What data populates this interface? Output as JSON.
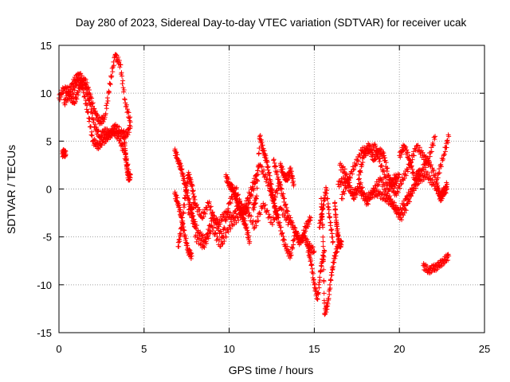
{
  "chart_data": {
    "type": "scatter",
    "title": "Day 280 of 2023, Sidereal Day-to-day VTEC variation (SDTVAR) for receiver ucak",
    "xlabel": "GPS time / hours",
    "ylabel": "SDTVAR / TECUs",
    "xlim": [
      0,
      25
    ],
    "ylim": [
      -15,
      15
    ],
    "xticks": [
      0,
      5,
      10,
      15,
      20,
      25
    ],
    "yticks": [
      -15,
      -10,
      -5,
      0,
      5,
      10,
      15
    ],
    "grid": true,
    "marker": "+",
    "color": "#ff0000",
    "series": [
      {
        "name": "SDTVAR",
        "segments": [
          {
            "x": [
              0.0,
              0.3,
              0.6,
              0.9,
              1.2,
              1.5,
              1.8,
              2.1,
              2.4,
              2.7,
              3.0,
              3.3,
              3.6,
              3.9,
              4.2
            ],
            "y": [
              9.5,
              10.5,
              10.2,
              11.3,
              12.0,
              11.0,
              9.0,
              6.5,
              5.5,
              6.0,
              5.8,
              6.5,
              6.0,
              5.5,
              6.5
            ]
          },
          {
            "x": [
              0.3,
              0.6,
              0.9,
              1.2,
              1.5,
              1.8,
              2.1,
              2.4,
              2.7,
              3.0,
              3.3,
              3.6,
              3.9,
              4.2
            ],
            "y": [
              9.0,
              9.8,
              9.0,
              10.5,
              11.5,
              10.0,
              8.0,
              7.0,
              7.5,
              11.0,
              14.0,
              13.0,
              9.0,
              7.0
            ]
          },
          {
            "x": [
              0.8,
              1.1,
              1.4,
              1.7,
              2.0,
              2.3,
              2.6,
              2.9,
              3.2,
              3.5,
              3.8,
              4.1
            ],
            "y": [
              10.0,
              11.5,
              10.5,
              8.0,
              5.0,
              4.5,
              5.0,
              5.5,
              6.0,
              5.5,
              4.0,
              2.0
            ]
          },
          {
            "x": [
              3.8,
              3.9,
              4.0,
              4.1,
              4.2
            ],
            "y": [
              6.0,
              4.0,
              2.0,
              1.0,
              1.5
            ]
          },
          {
            "x": [
              0.2,
              0.3,
              0.4
            ],
            "y": [
              3.7,
              3.8,
              3.6
            ]
          },
          {
            "x": [
              6.8,
              7.0,
              7.2,
              7.4,
              7.6,
              7.8
            ],
            "y": [
              -0.5,
              -1.5,
              -3.0,
              -5.0,
              -6.5,
              -7.0
            ]
          },
          {
            "x": [
              6.8,
              7.0,
              7.2,
              7.4,
              7.6,
              7.8,
              8.0
            ],
            "y": [
              4.0,
              3.0,
              2.0,
              0.5,
              -1.0,
              -2.5,
              -4.0
            ]
          },
          {
            "x": [
              7.0,
              7.2,
              7.4,
              7.6,
              7.8,
              8.0
            ],
            "y": [
              -6.0,
              -4.0,
              -1.0,
              1.5,
              0.5,
              -1.5
            ]
          },
          {
            "x": [
              7.8,
              8.2,
              8.6,
              9.0,
              9.4,
              9.8,
              10.2,
              10.6,
              11.0,
              11.4,
              11.8,
              12.2,
              12.6,
              13.0
            ],
            "y": [
              -3.0,
              -4.5,
              -5.5,
              -3.0,
              -3.5,
              -2.5,
              -3.0,
              -1.5,
              -2.5,
              0.0,
              2.5,
              1.0,
              -1.0,
              0.5
            ]
          },
          {
            "x": [
              7.6,
              8.0,
              8.4,
              8.8,
              9.2,
              9.6,
              10.0,
              10.4,
              10.8,
              11.2,
              11.6
            ],
            "y": [
              -2.5,
              -1.5,
              -3.0,
              -1.5,
              -3.5,
              -5.0,
              -1.5,
              0.0,
              -2.5,
              -0.5,
              1.5
            ]
          },
          {
            "x": [
              8.0,
              8.5,
              9.0,
              9.5,
              10.0,
              10.5,
              11.0,
              11.5,
              12.0,
              12.5,
              13.0,
              13.5
            ],
            "y": [
              -5.0,
              -6.0,
              -4.0,
              -6.0,
              -4.0,
              -3.0,
              -2.0,
              -4.0,
              -1.5,
              -3.5,
              -2.0,
              -3.5
            ]
          },
          {
            "x": [
              9.8,
              10.0,
              10.2,
              10.4,
              10.6,
              10.8,
              11.0,
              11.2
            ],
            "y": [
              1.3,
              0.5,
              0.0,
              -1.0,
              -2.0,
              -3.0,
              -4.0,
              -5.5
            ]
          },
          {
            "x": [
              11.4,
              11.6,
              11.8,
              12.0,
              12.2,
              12.4,
              12.6,
              12.8
            ],
            "y": [
              -2.0,
              -1.0,
              5.5,
              4.0,
              3.0,
              1.0,
              -1.0,
              -3.0
            ]
          },
          {
            "x": [
              12.6,
              12.9,
              13.2,
              13.5,
              13.8,
              14.1,
              14.4,
              14.7,
              15.0
            ],
            "y": [
              3.0,
              1.0,
              -1.0,
              -3.0,
              -4.0,
              -5.5,
              -5.0,
              -6.0,
              -6.5
            ]
          },
          {
            "x": [
              12.4,
              12.7,
              13.0,
              13.3,
              13.6,
              13.9,
              14.2,
              14.5,
              14.8
            ],
            "y": [
              0.0,
              -2.0,
              -4.0,
              -6.0,
              -7.0,
              -4.5,
              -5.5,
              -4.0,
              -3.0
            ]
          },
          {
            "x": [
              13.0,
              13.2,
              13.4,
              13.6,
              13.8
            ],
            "y": [
              2.5,
              1.5,
              1.0,
              2.0,
              0.5
            ]
          },
          {
            "x": [
              14.6,
              14.8,
              15.0,
              15.2,
              15.4,
              15.6
            ],
            "y": [
              -6.0,
              -7.5,
              -10.0,
              -11.5,
              -8.0,
              -6.5
            ]
          },
          {
            "x": [
              15.4,
              15.5,
              15.6,
              15.8,
              16.0,
              16.2,
              16.4
            ],
            "y": [
              -1.0,
              -4.0,
              -13.0,
              -12.0,
              -9.0,
              -7.0,
              -6.0
            ]
          },
          {
            "x": [
              15.3,
              15.5,
              15.7,
              15.9,
              16.1
            ],
            "y": [
              -4.0,
              -2.0,
              0.0,
              -3.0,
              -5.5
            ]
          },
          {
            "x": [
              16.2,
              16.3,
              16.4,
              16.5,
              16.6
            ],
            "y": [
              -1.5,
              -3.5,
              -5.0,
              -6.0,
              -5.5
            ]
          },
          {
            "x": [
              16.4,
              16.8,
              17.2,
              17.6,
              18.0,
              18.4,
              18.8,
              19.2,
              19.6,
              20.0,
              20.4,
              20.8,
              21.2,
              21.6,
              22.0,
              22.4,
              22.8
            ],
            "y": [
              0.5,
              1.0,
              -0.5,
              0.0,
              -1.0,
              -0.5,
              -0.5,
              -1.0,
              -1.5,
              -2.5,
              -1.0,
              0.0,
              1.0,
              1.5,
              0.5,
              -0.5,
              0.0
            ]
          },
          {
            "x": [
              16.5,
              16.9,
              17.3,
              17.7,
              18.1,
              18.5,
              18.9,
              19.3,
              19.7,
              20.1,
              20.5,
              20.9,
              21.3,
              21.7,
              22.1
            ],
            "y": [
              2.5,
              1.5,
              -1.0,
              0.5,
              -1.5,
              0.0,
              1.0,
              -0.5,
              -2.0,
              -3.0,
              -1.5,
              0.5,
              2.0,
              3.0,
              5.5
            ]
          },
          {
            "x": [
              16.6,
              17.0,
              17.4,
              17.8,
              18.2,
              18.6,
              19.0,
              19.4,
              19.8
            ],
            "y": [
              -1.0,
              1.0,
              2.5,
              4.0,
              4.0,
              4.5,
              2.0,
              0.0,
              1.5
            ]
          },
          {
            "x": [
              17.6,
              17.9,
              18.2,
              18.5,
              18.8,
              19.1,
              19.4,
              19.7,
              20.0
            ],
            "y": [
              1.0,
              3.5,
              4.5,
              3.0,
              4.0,
              3.5,
              1.0,
              0.5,
              1.5
            ]
          },
          {
            "x": [
              19.4,
              19.8,
              20.2,
              20.6,
              21.0,
              21.4,
              21.8,
              22.2,
              22.6,
              22.9
            ],
            "y": [
              0.5,
              -0.5,
              1.0,
              2.5,
              4.5,
              3.5,
              2.5,
              1.0,
              3.5,
              5.5
            ]
          },
          {
            "x": [
              20.0,
              20.3,
              20.6,
              20.9,
              21.2
            ],
            "y": [
              3.5,
              4.5,
              3.0,
              1.0,
              2.0
            ]
          },
          {
            "x": [
              22.2,
              22.4,
              22.6,
              22.8
            ],
            "y": [
              0.5,
              -1.0,
              -0.5,
              0.5
            ]
          },
          {
            "x": [
              21.4,
              21.7,
              22.0,
              22.3,
              22.6,
              22.9
            ],
            "y": [
              -8.0,
              -8.5,
              -8.3,
              -8.0,
              -7.5,
              -7.0
            ]
          }
        ]
      }
    ]
  }
}
